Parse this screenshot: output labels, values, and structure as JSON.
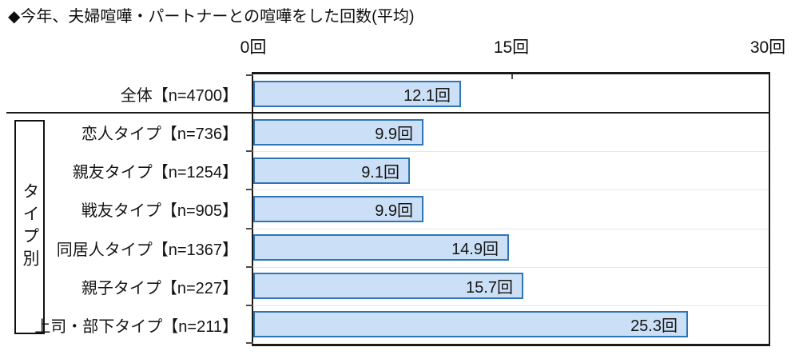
{
  "title": "◆今年、夫婦喧嘩・パートナーとの喧嘩をした回数(平均)",
  "group_label": "タイプ別",
  "axis": {
    "tick_labels": [
      "0回",
      "15回",
      "30回"
    ]
  },
  "colors": {
    "bar_fill": "#CBE0F6",
    "bar_border": "#2E75B6",
    "axis_line": "#1A1A1A",
    "gridline": "#E7E7EE",
    "text": "#141414"
  },
  "chart_data": {
    "type": "bar",
    "orientation": "horizontal",
    "title": "◆今年、夫婦喧嘩・パートナーとの喧嘩をした回数(平均)",
    "categories": [
      "全体【n=4700】",
      "恋人タイプ【n=736】",
      "親友タイプ【n=1254】",
      "戦友タイプ【n=905】",
      "同居人タイプ【n=1367】",
      "親子タイプ【n=227】",
      "上司・部下タイプ【n=211】"
    ],
    "values": [
      12.1,
      9.9,
      9.1,
      9.9,
      14.9,
      15.7,
      25.3
    ],
    "value_labels": [
      "12.1回",
      "9.9回",
      "9.1回",
      "9.9回",
      "14.9回",
      "15.7回",
      "25.3回"
    ],
    "xlim": [
      0,
      30
    ],
    "x_tick_values": [
      0,
      15,
      30
    ],
    "x_tick_labels": [
      "0回",
      "15回",
      "30回"
    ],
    "group": {
      "label": "タイプ別",
      "category_indices": [
        1,
        2,
        3,
        4,
        5,
        6
      ]
    },
    "legend": "none",
    "grid": "faint horizontal row separators inside plot"
  }
}
